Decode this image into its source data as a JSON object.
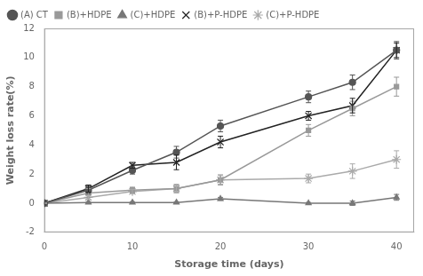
{
  "chart_data": {
    "type": "line",
    "x": [
      0,
      5,
      10,
      15,
      20,
      30,
      35,
      40
    ],
    "series": [
      {
        "name": "(A) CT",
        "color": "#555555",
        "marker": "o",
        "values": [
          0,
          0.9,
          2.25,
          3.5,
          5.3,
          7.3,
          8.3,
          10.5
        ],
        "yerr": [
          0.05,
          0.3,
          0.25,
          0.4,
          0.4,
          0.4,
          0.5,
          0.6
        ]
      },
      {
        "name": "(B)+HDPE",
        "color": "#999999",
        "marker": "s",
        "values": [
          0,
          0.7,
          0.9,
          1.0,
          1.6,
          5.0,
          6.5,
          8.0
        ],
        "yerr": [
          0.05,
          0.3,
          0.2,
          0.25,
          0.35,
          0.4,
          0.5,
          0.65
        ]
      },
      {
        "name": "(C)+HDPE",
        "color": "#777777",
        "marker": "^",
        "values": [
          0,
          0.05,
          0.05,
          0.05,
          0.3,
          0.0,
          0.0,
          0.4
        ],
        "yerr": [
          0.02,
          0.05,
          0.05,
          0.05,
          0.1,
          0.05,
          0.15,
          0.2
        ]
      },
      {
        "name": "(B)+P-HDPE",
        "color": "#222222",
        "marker": "x",
        "values": [
          0,
          1.0,
          2.6,
          2.8,
          4.2,
          6.0,
          6.7,
          10.5
        ],
        "yerr": [
          0.05,
          0.25,
          0.2,
          0.5,
          0.4,
          0.3,
          0.5,
          0.5
        ]
      },
      {
        "name": "(C)+P-HDPE",
        "color": "#aaaaaa",
        "marker": "*",
        "values": [
          0,
          0.4,
          0.8,
          1.0,
          1.6,
          1.7,
          2.2,
          3.0
        ],
        "yerr": [
          0.02,
          0.15,
          0.15,
          0.3,
          0.3,
          0.3,
          0.5,
          0.6
        ]
      }
    ],
    "xlabel": "Storage time (days)",
    "ylabel": "Weight loss rate(%)",
    "xlim": [
      0,
      42
    ],
    "ylim": [
      -2,
      12
    ],
    "xticks": [
      0,
      10,
      20,
      30,
      40
    ],
    "yticks": [
      -2,
      0,
      2,
      4,
      6,
      8,
      10,
      12
    ],
    "legend": "upper left",
    "grid": false
  }
}
